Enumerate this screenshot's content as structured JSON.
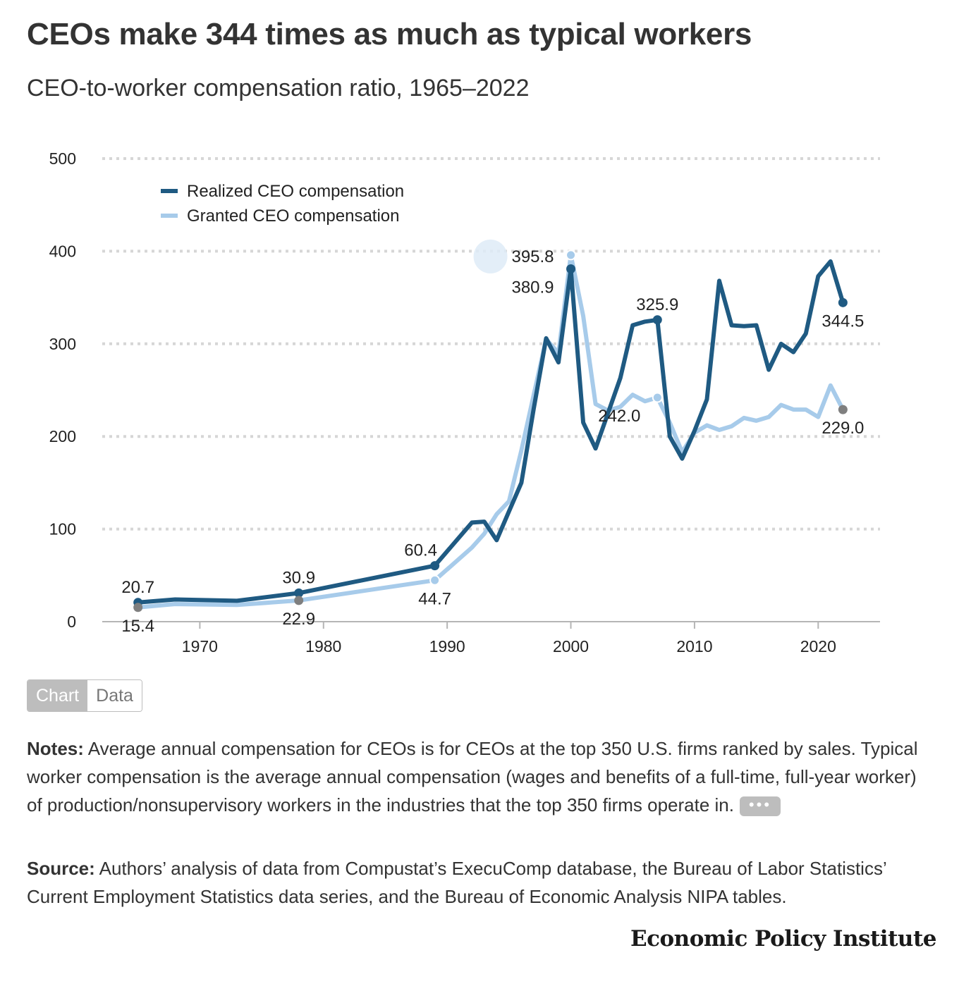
{
  "title": "CEOs make 344 times as much as typical workers",
  "subtitle": "CEO-to-worker compensation ratio, 1965–2022",
  "toggle": {
    "chart_label": "Chart",
    "data_label": "Data"
  },
  "notes": {
    "label": "Notes:",
    "text": " Average annual compensation for CEOs is for CEOs at the top 350 U.S. firms ranked by sales. Typical worker compensation is the average annual compensation (wages and benefits of a full-time, full-year worker) of production/nonsupervisory workers in the industries that the top 350 firms operate in.",
    "more_label": "•••"
  },
  "source": {
    "label": "Source:",
    "text": " Authors’ analysis of data from Compustat’s ExecuComp database, the Bureau of Labor Statistics’ Current Employment Statistics data series, and the Bureau of Economic Analysis NIPA tables."
  },
  "publisher": "Economic Policy Institute",
  "colors": {
    "realized": "#1f5a82",
    "granted": "#a7cbea",
    "grid": "#d6d6d6",
    "marker_grey": "#7f7f7f"
  },
  "chart_data": {
    "type": "line",
    "title": "CEOs make 344 times as much as typical workers",
    "subtitle": "CEO-to-worker compensation ratio, 1965–2022",
    "xlabel": "",
    "ylabel": "",
    "xlim": [
      1960,
      2025
    ],
    "ylim": [
      0,
      500
    ],
    "yticks": [
      0,
      100,
      200,
      300,
      400,
      500
    ],
    "xticks": [
      1970,
      1980,
      1990,
      2000,
      2010,
      2020
    ],
    "grid": true,
    "legend_position": "top-left",
    "series": [
      {
        "name": "Realized CEO compensation",
        "color": "#1f5a82",
        "points": [
          [
            1965,
            20.7
          ],
          [
            1968,
            24
          ],
          [
            1973,
            22.5
          ],
          [
            1978,
            30.9
          ],
          [
            1989,
            60.4
          ],
          [
            1992,
            107
          ],
          [
            1993,
            108
          ],
          [
            1994,
            88
          ],
          [
            1995,
            119
          ],
          [
            1996,
            150
          ],
          [
            1997,
            230
          ],
          [
            1998,
            306
          ],
          [
            1999,
            280
          ],
          [
            2000,
            380.9
          ],
          [
            2001,
            215
          ],
          [
            2002,
            187
          ],
          [
            2003,
            225
          ],
          [
            2004,
            263
          ],
          [
            2005,
            320
          ],
          [
            2006,
            324
          ],
          [
            2007,
            325.9
          ],
          [
            2008,
            200
          ],
          [
            2009,
            176
          ],
          [
            2010,
            206
          ],
          [
            2011,
            240
          ],
          [
            2012,
            368
          ],
          [
            2013,
            320
          ],
          [
            2014,
            319
          ],
          [
            2015,
            320
          ],
          [
            2016,
            272
          ],
          [
            2017,
            300
          ],
          [
            2018,
            291
          ],
          [
            2019,
            311
          ],
          [
            2020,
            373
          ],
          [
            2021,
            389
          ],
          [
            2022,
            344.5
          ]
        ]
      },
      {
        "name": "Granted CEO compensation",
        "color": "#a7cbea",
        "points": [
          [
            1965,
            15.4
          ],
          [
            1968,
            19
          ],
          [
            1973,
            18
          ],
          [
            1978,
            22.9
          ],
          [
            1989,
            44.7
          ],
          [
            1992,
            80
          ],
          [
            1993,
            95
          ],
          [
            1994,
            116
          ],
          [
            1995,
            130
          ],
          [
            1996,
            185
          ],
          [
            1997,
            245
          ],
          [
            1998,
            305
          ],
          [
            1999,
            290
          ],
          [
            2000,
            395.8
          ],
          [
            2001,
            330
          ],
          [
            2002,
            235
          ],
          [
            2003,
            228
          ],
          [
            2004,
            232
          ],
          [
            2005,
            245
          ],
          [
            2006,
            238
          ],
          [
            2007,
            242.0
          ],
          [
            2008,
            215
          ],
          [
            2009,
            183
          ],
          [
            2010,
            204
          ],
          [
            2011,
            212
          ],
          [
            2012,
            207
          ],
          [
            2013,
            211
          ],
          [
            2014,
            220
          ],
          [
            2015,
            217
          ],
          [
            2016,
            221
          ],
          [
            2017,
            234
          ],
          [
            2018,
            229
          ],
          [
            2019,
            229
          ],
          [
            2020,
            221
          ],
          [
            2021,
            255
          ],
          [
            2022,
            229.0
          ]
        ]
      }
    ],
    "annotations": [
      {
        "series": 0,
        "x": 1965,
        "y": 20.7,
        "text": "20.7",
        "marker": "#1f5a82",
        "pos": "above"
      },
      {
        "series": 1,
        "x": 1965,
        "y": 15.4,
        "text": "15.4",
        "marker": "#7f7f7f",
        "pos": "below"
      },
      {
        "series": 0,
        "x": 1978,
        "y": 30.9,
        "text": "30.9",
        "marker": "#1f5a82",
        "pos": "above"
      },
      {
        "series": 1,
        "x": 1978,
        "y": 22.9,
        "text": "22.9",
        "marker": "#7f7f7f",
        "pos": "below"
      },
      {
        "series": 0,
        "x": 1989,
        "y": 60.4,
        "text": "60.4",
        "marker": "#1f5a82",
        "pos": "aboveleft"
      },
      {
        "series": 1,
        "x": 1989,
        "y": 44.7,
        "text": "44.7",
        "marker": "#a7cbea",
        "pos": "below"
      },
      {
        "series": 1,
        "x": 2000,
        "y": 395.8,
        "text": "395.8",
        "marker": "#a7cbea",
        "pos": "left"
      },
      {
        "series": 0,
        "x": 2000,
        "y": 380.9,
        "text": "380.9",
        "marker": "#1f5a82",
        "pos": "belowleft"
      },
      {
        "series": 0,
        "x": 2007,
        "y": 325.9,
        "text": "325.9",
        "marker": "#1f5a82",
        "pos": "above"
      },
      {
        "series": 1,
        "x": 2007,
        "y": 242.0,
        "text": "242.0",
        "marker": "#a7cbea",
        "pos": "belowleft"
      },
      {
        "series": 0,
        "x": 2022,
        "y": 344.5,
        "text": "344.5",
        "marker": "#1f5a82",
        "pos": "below"
      },
      {
        "series": 1,
        "x": 2022,
        "y": 229.0,
        "text": "229.0",
        "marker": "#7f7f7f",
        "pos": "below"
      }
    ]
  }
}
